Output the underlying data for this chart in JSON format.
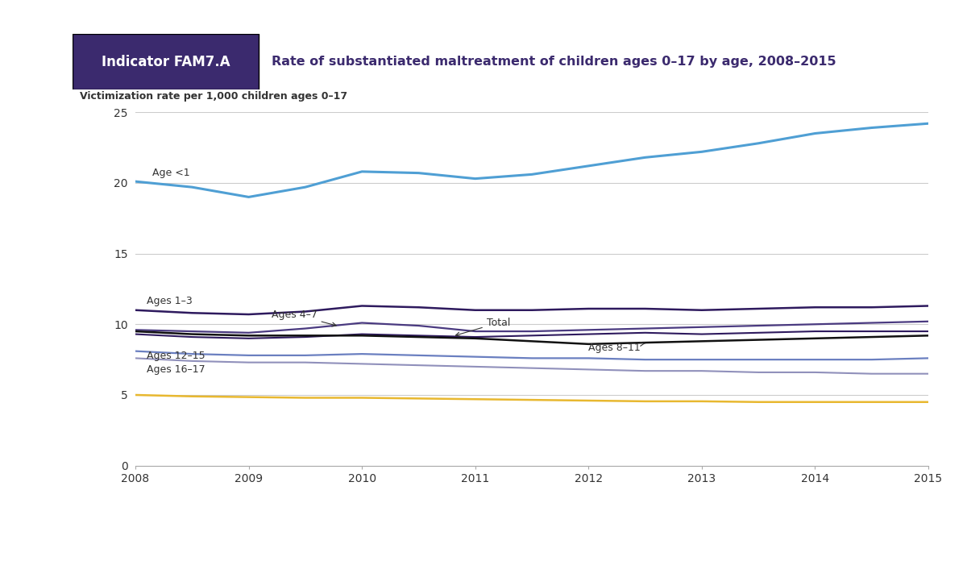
{
  "years": [
    2008,
    2008.5,
    2009,
    2009.5,
    2010,
    2010.5,
    2011,
    2011.5,
    2012,
    2012.5,
    2013,
    2013.5,
    2014,
    2014.5,
    2015
  ],
  "age_lt1": [
    20.1,
    19.7,
    19.0,
    19.7,
    20.8,
    20.7,
    20.3,
    20.6,
    21.2,
    21.8,
    22.2,
    22.8,
    23.5,
    23.9,
    24.2
  ],
  "ages_1_3": [
    11.0,
    10.8,
    10.7,
    10.9,
    11.3,
    11.2,
    11.0,
    11.0,
    11.1,
    11.1,
    11.0,
    11.1,
    11.2,
    11.2,
    11.3
  ],
  "ages_4_7": [
    9.6,
    9.5,
    9.4,
    9.7,
    10.1,
    9.9,
    9.5,
    9.5,
    9.6,
    9.7,
    9.8,
    9.9,
    10.0,
    10.1,
    10.2
  ],
  "total": [
    9.3,
    9.1,
    9.0,
    9.1,
    9.3,
    9.2,
    9.1,
    9.2,
    9.3,
    9.4,
    9.3,
    9.4,
    9.5,
    9.5,
    9.5
  ],
  "ages_8_11": [
    9.5,
    9.3,
    9.2,
    9.2,
    9.2,
    9.1,
    9.0,
    8.8,
    8.6,
    8.7,
    8.8,
    8.9,
    9.0,
    9.1,
    9.2
  ],
  "ages_12_15": [
    8.1,
    7.9,
    7.8,
    7.8,
    7.9,
    7.8,
    7.7,
    7.6,
    7.6,
    7.5,
    7.5,
    7.5,
    7.5,
    7.5,
    7.6
  ],
  "ages_16_17_pur": [
    7.6,
    7.4,
    7.3,
    7.3,
    7.2,
    7.1,
    7.0,
    6.9,
    6.8,
    6.7,
    6.7,
    6.6,
    6.6,
    6.5,
    6.5
  ],
  "ages_16_17_yel": [
    5.0,
    4.9,
    4.85,
    4.8,
    4.8,
    4.75,
    4.7,
    4.65,
    4.6,
    4.55,
    4.55,
    4.5,
    4.5,
    4.5,
    4.5
  ],
  "color_age_lt1": "#4f9fd4",
  "color_ages_1_3": "#2e1a5e",
  "color_ages_4_7": "#4a3a80",
  "color_total": "#2e1a5e",
  "color_ages_8_11": "#111111",
  "color_ages_12_15": "#6a7fc0",
  "color_ages_16_17_pur": "#9090bb",
  "color_ages_16_17_yel": "#e8b830",
  "header_bg_dark": "#3b2a6e",
  "header_bg_light": "#d4d4e4",
  "bg_outer": "#ffffff",
  "bg_panel": "#d8d8e8",
  "bg_chart": "#ffffff",
  "header_text": "Indicator FAM7.A",
  "chart_title": "Rate of substantiated maltreatment of children ages 0–17 by age, 2008–2015",
  "ylabel": "Victimization rate per 1,000 children ages 0–17",
  "ylim": [
    0,
    25
  ],
  "yticks": [
    0,
    5,
    10,
    15,
    20,
    25
  ],
  "xticks": [
    2008,
    2009,
    2010,
    2011,
    2012,
    2013,
    2014,
    2015
  ],
  "label_age_lt1": "Age <1",
  "label_ages_1_3": "Ages 1–3",
  "label_ages_4_7": "Ages 4–7",
  "label_total": "Total",
  "label_ages_8_11": "Ages 8–11",
  "label_ages_12_15": "Ages 12–15",
  "label_ages_16_17": "Ages 16–17"
}
